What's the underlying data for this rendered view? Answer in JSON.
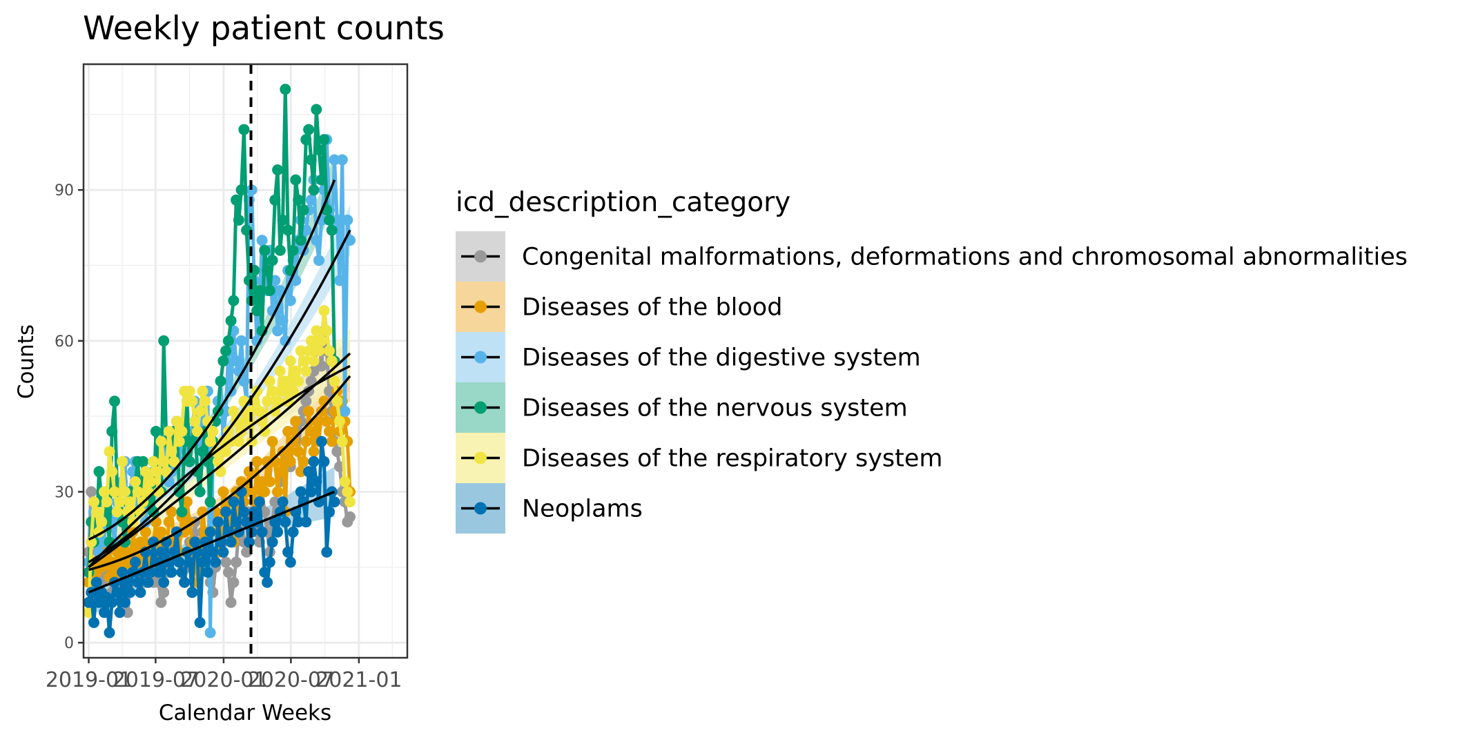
{
  "chart_data": {
    "type": "line",
    "title": "Weekly patient counts",
    "xlabel": "Calendar Weeks",
    "ylabel": "Counts",
    "xlim": [
      "2018-12-18",
      "2021-05-12"
    ],
    "ylim": [
      -3,
      115
    ],
    "x_ticks": [
      "2019-01",
      "2019-07",
      "2020-01",
      "2020-07",
      "2021-01"
    ],
    "y_ticks": [
      0,
      30,
      60,
      90
    ],
    "vline": {
      "x": "2020-03-15",
      "style": "dashed"
    },
    "grid": true,
    "legend": {
      "title": "icd_description_category",
      "position": "right"
    },
    "series": [
      {
        "name": "Congenital malformations, deformations and chromosomal abnormalities",
        "color": "#999999",
        "ribbon_color": "#d6d6d6",
        "values": [
          18,
          30,
          22,
          16,
          20,
          12,
          15,
          18,
          14,
          10,
          13,
          16,
          12,
          9,
          8,
          6,
          12,
          15,
          18,
          14,
          13,
          16,
          12,
          15,
          18,
          12,
          15,
          12,
          8,
          10,
          16,
          14,
          18,
          20,
          22,
          16,
          14,
          12,
          15,
          20,
          18,
          24,
          20,
          16,
          22,
          18,
          14,
          12,
          10,
          15,
          22,
          18,
          20,
          16,
          14,
          8,
          12,
          16,
          22,
          25,
          20,
          18,
          26,
          24,
          28,
          22,
          20,
          30,
          26,
          22,
          18,
          24,
          28,
          30,
          32,
          34,
          36,
          38,
          35,
          40,
          42,
          38,
          44,
          46,
          48,
          50,
          52,
          54,
          58,
          60,
          55,
          62,
          58,
          50,
          46,
          40,
          38,
          35,
          30,
          28,
          24,
          25
        ],
        "trend": [
          15.0,
          38.5,
          55.0
        ]
      },
      {
        "name": "Diseases of the blood",
        "color": "#E69F00",
        "ribbon_color": "#f6d69a",
        "values": [
          12,
          14,
          16,
          14,
          18,
          15,
          20,
          17,
          13,
          16,
          12,
          18,
          14,
          20,
          16,
          18,
          15,
          22,
          19,
          16,
          20,
          17,
          22,
          18,
          15,
          20,
          24,
          18,
          22,
          20,
          16,
          24,
          26,
          20,
          22,
          18,
          25,
          22,
          28,
          24,
          20,
          18,
          12,
          14,
          26,
          22,
          20,
          28,
          24,
          26,
          18,
          22,
          30,
          26,
          28,
          24,
          20,
          30,
          26,
          32,
          28,
          30,
          34,
          30,
          26,
          36,
          28,
          32,
          30,
          36,
          32,
          40,
          36,
          30,
          34,
          38,
          26,
          42,
          36,
          40,
          44,
          38,
          34,
          36,
          40,
          46,
          42,
          38,
          44,
          40,
          46,
          48,
          44,
          42,
          40,
          46,
          50,
          42,
          48,
          44,
          40,
          30
        ],
        "trend": [
          14.5,
          27.5,
          53.0
        ]
      },
      {
        "name": "Diseases of the digestive system",
        "color": "#56B4E9",
        "ribbon_color": "#bfe1f6",
        "values": [
          16,
          20,
          26,
          22,
          18,
          24,
          20,
          30,
          26,
          24,
          20,
          28,
          30,
          32,
          36,
          24,
          30,
          34,
          36,
          28,
          26,
          30,
          24,
          28,
          32,
          34,
          36,
          30,
          38,
          40,
          36,
          32,
          34,
          38,
          40,
          36,
          42,
          40,
          38,
          36,
          42,
          48,
          44,
          40,
          46,
          42,
          50,
          2,
          38,
          44,
          48,
          52,
          40,
          46,
          58,
          50,
          62,
          56,
          54,
          60,
          52,
          48,
          88,
          90,
          72,
          60,
          68,
          80,
          74,
          70,
          78,
          66,
          72,
          62,
          70,
          64,
          60,
          74,
          68,
          76,
          72,
          80,
          84,
          78,
          82,
          86,
          88,
          92,
          80,
          76,
          84,
          90,
          100,
          86,
          82,
          96,
          84,
          72,
          96,
          46,
          84,
          80
        ],
        "trend": [
          16.0,
          40.0,
          82.0
        ]
      },
      {
        "name": "Diseases of the nervous system",
        "color": "#009E73",
        "ribbon_color": "#99d8c7",
        "values": [
          14,
          24,
          20,
          22,
          34,
          28,
          30,
          26,
          20,
          42,
          48,
          30,
          26,
          24,
          20,
          28,
          30,
          26,
          32,
          36,
          26,
          36,
          34,
          28,
          30,
          26,
          42,
          32,
          30,
          60,
          40,
          36,
          38,
          42,
          44,
          30,
          26,
          40,
          48,
          36,
          40,
          44,
          34,
          30,
          38,
          42,
          36,
          28,
          40,
          44,
          46,
          52,
          56,
          58,
          60,
          64,
          68,
          88,
          84,
          90,
          102,
          82,
          72,
          68,
          74,
          66,
          70,
          62,
          78,
          74,
          70,
          76,
          88,
          94,
          78,
          84,
          110,
          82,
          74,
          78,
          92,
          88,
          80,
          86,
          100,
          102,
          96,
          90,
          106,
          98,
          92,
          100,
          86,
          84,
          82,
          56
        ],
        "trend": [
          20.5,
          44.0,
          92.0
        ]
      },
      {
        "name": "Diseases of the respiratory system",
        "color": "#F0E442",
        "ribbon_color": "#f9f3b3",
        "values": [
          6,
          20,
          28,
          26,
          22,
          24,
          30,
          28,
          38,
          34,
          30,
          26,
          28,
          36,
          30,
          26,
          28,
          24,
          32,
          30,
          26,
          28,
          34,
          30,
          32,
          36,
          34,
          30,
          40,
          36,
          34,
          42,
          38,
          36,
          44,
          40,
          42,
          50,
          48,
          50,
          48,
          44,
          42,
          46,
          50,
          48,
          44,
          40,
          42,
          38,
          36,
          34,
          40,
          38,
          42,
          40,
          46,
          44,
          40,
          42,
          48,
          44,
          46,
          40,
          48,
          50,
          46,
          44,
          42,
          48,
          52,
          50,
          46,
          48,
          54,
          50,
          52,
          48,
          56,
          50,
          54,
          52,
          58,
          56,
          54,
          58,
          60,
          56,
          62,
          58,
          60,
          66,
          62,
          58,
          56,
          52,
          48,
          44,
          40,
          32,
          30,
          28
        ],
        "trend": [
          15.0,
          35.0,
          57.5
        ]
      },
      {
        "name": "Neoplams",
        "color": "#0072B2",
        "ribbon_color": "#99c7e0",
        "values": [
          8,
          10,
          4,
          12,
          8,
          10,
          6,
          9,
          2,
          8,
          12,
          10,
          6,
          14,
          8,
          12,
          10,
          14,
          16,
          12,
          10,
          14,
          18,
          12,
          14,
          20,
          16,
          14,
          18,
          12,
          20,
          16,
          14,
          18,
          22,
          16,
          14,
          12,
          18,
          16,
          10,
          20,
          18,
          4,
          16,
          20,
          14,
          22,
          18,
          16,
          24,
          20,
          18,
          26,
          22,
          20,
          28,
          24,
          22,
          30,
          26,
          24,
          20,
          22,
          26,
          24,
          28,
          22,
          14,
          12,
          16,
          20,
          24,
          22,
          26,
          28,
          24,
          18,
          16,
          22,
          26,
          24,
          30,
          28,
          24,
          34,
          30,
          36,
          32,
          28,
          40,
          36,
          18,
          26,
          30,
          28
        ],
        "trend": [
          10.0,
          20.0,
          30.0
        ]
      }
    ]
  }
}
